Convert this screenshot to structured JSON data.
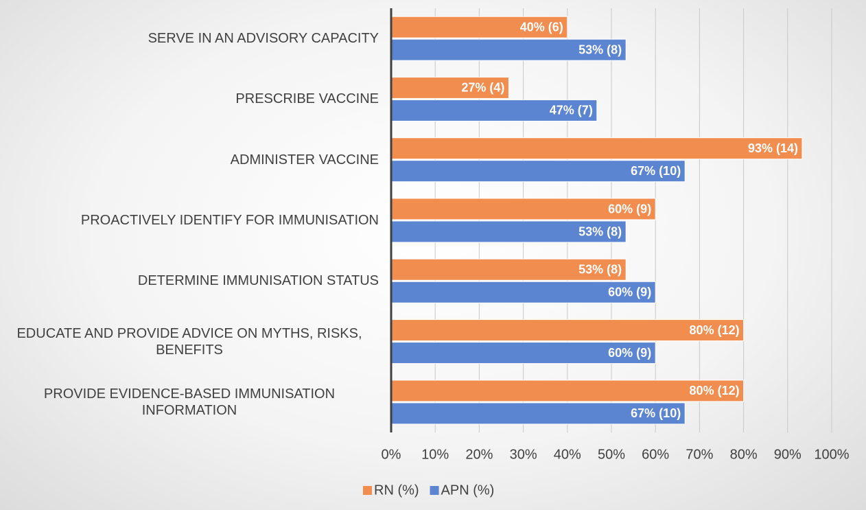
{
  "chart_data": {
    "type": "hbar",
    "categories": [
      "SERVE IN AN ADVISORY CAPACITY",
      "PRESCRIBE VACCINE",
      "ADMINISTER VACCINE",
      "PROACTIVELY IDENTIFY FOR IMMUNISATION",
      "DETERMINE IMMUNISATION STATUS",
      "EDUCATE AND PROVIDE ADVICE ON MYTHS, RISKS, BENEFITS",
      "PROVIDE EVIDENCE-BASED IMMUNISATION INFORMATION"
    ],
    "series": [
      {
        "name": "RN (%)",
        "color": "#f08d4f",
        "values": [
          40,
          26.7,
          93.3,
          60,
          53.3,
          80,
          80
        ],
        "value_labels": [
          "40% (6)",
          "27% (4)",
          "93% (14)",
          "60% (9)",
          "53% (8)",
          "80% (12)",
          "80% (12)"
        ]
      },
      {
        "name": "APN (%)",
        "color": "#5b84d1",
        "values": [
          53.3,
          46.7,
          66.7,
          53.3,
          60,
          60,
          66.7
        ],
        "value_labels": [
          "53% (8)",
          "47% (7)",
          "67% (10)",
          "53% (8)",
          "60% (9)",
          "60% (9)",
          "67% (10)"
        ]
      }
    ],
    "xlim": [
      0,
      100
    ],
    "xticks": [
      {
        "value": 0,
        "label": "0%"
      },
      {
        "value": 10,
        "label": "10%"
      },
      {
        "value": 20,
        "label": "20%"
      },
      {
        "value": 30,
        "label": "30%"
      },
      {
        "value": 40,
        "label": "40%"
      },
      {
        "value": 50,
        "label": "50%"
      },
      {
        "value": 60,
        "label": "60%"
      },
      {
        "value": 70,
        "label": "70%"
      },
      {
        "value": 80,
        "label": "80%"
      },
      {
        "value": 90,
        "label": "90%"
      },
      {
        "value": 100,
        "label": "100%"
      }
    ],
    "grid": true,
    "legend": "bottom"
  }
}
